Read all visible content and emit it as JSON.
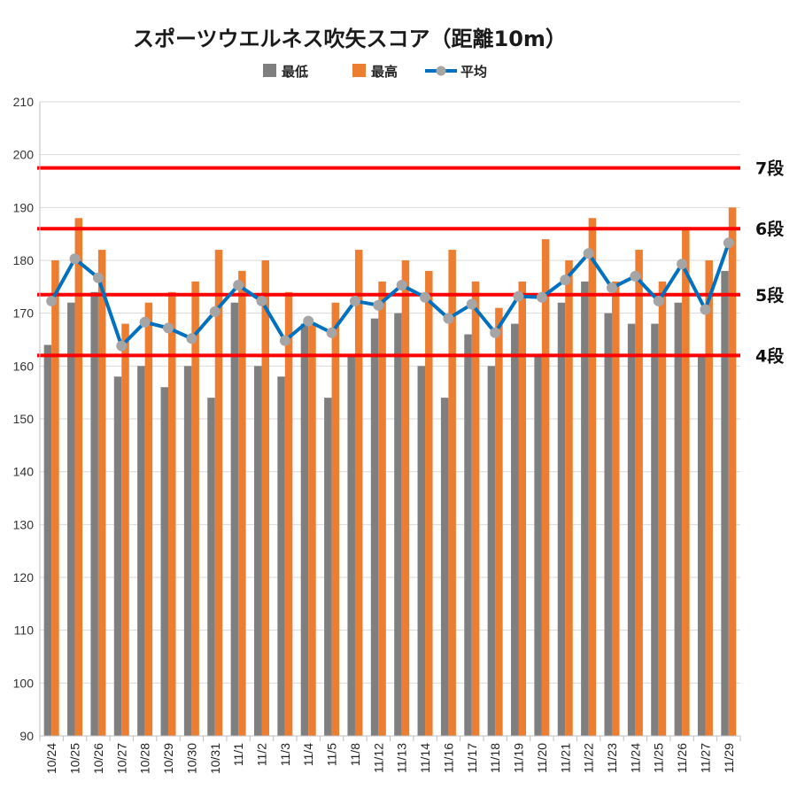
{
  "colors": {
    "min": "#7f7f7f",
    "max": "#ed7d31",
    "avg_line": "#0070c0",
    "avg_marker": "#a5a5a5",
    "threshold": "#ff0000",
    "grid": "#d9d9d9"
  },
  "chart_data": {
    "type": "bar",
    "title": "スポーツウエルネス吹矢スコア（距離10m）",
    "xlabel": "",
    "ylabel": "",
    "ylim": [
      90,
      210
    ],
    "yticks": [
      90,
      100,
      110,
      120,
      130,
      140,
      150,
      160,
      170,
      180,
      190,
      200,
      210
    ],
    "grid": true,
    "legend_position": "top",
    "categories": [
      "10/24",
      "10/25",
      "10/26",
      "10/27",
      "10/28",
      "10/29",
      "10/30",
      "10/31",
      "11/1",
      "11/2",
      "11/3",
      "11/4",
      "11/5",
      "11/8",
      "11/12",
      "11/13",
      "11/14",
      "11/16",
      "11/17",
      "11/18",
      "11/19",
      "11/20",
      "11/21",
      "11/22",
      "11/23",
      "11/24",
      "11/25",
      "11/26",
      "11/27",
      "11/29"
    ],
    "series": [
      {
        "name": "最低",
        "type": "bar",
        "values": [
          164,
          172,
          174,
          158,
          160,
          156,
          160,
          154,
          172,
          160,
          158,
          168,
          154,
          162,
          169,
          170,
          160,
          154,
          166,
          160,
          168,
          162,
          172,
          176,
          170,
          168,
          168,
          172,
          162,
          178
        ]
      },
      {
        "name": "最高",
        "type": "bar",
        "values": [
          180,
          188,
          182,
          168,
          172,
          174,
          176,
          182,
          178,
          180,
          174,
          168,
          172,
          182,
          176,
          180,
          178,
          182,
          176,
          171,
          176,
          184,
          180,
          188,
          176,
          182,
          176,
          186,
          180,
          190
        ]
      },
      {
        "name": "平均",
        "type": "line",
        "values": [
          172.3,
          180.3,
          176.7,
          163.8,
          168.3,
          167.2,
          165.2,
          170.3,
          175.3,
          172.3,
          164.8,
          168.5,
          166.3,
          172.3,
          171.5,
          175.3,
          173,
          169,
          171.7,
          166.3,
          173.2,
          173,
          176.3,
          181.3,
          174.8,
          177,
          172.3,
          179.3,
          170.7,
          183.3
        ]
      }
    ],
    "thresholds": [
      {
        "label": "7段",
        "value": 197.5
      },
      {
        "label": "6段",
        "value": 186
      },
      {
        "label": "5段",
        "value": 173.5
      },
      {
        "label": "4段",
        "value": 162
      }
    ]
  }
}
